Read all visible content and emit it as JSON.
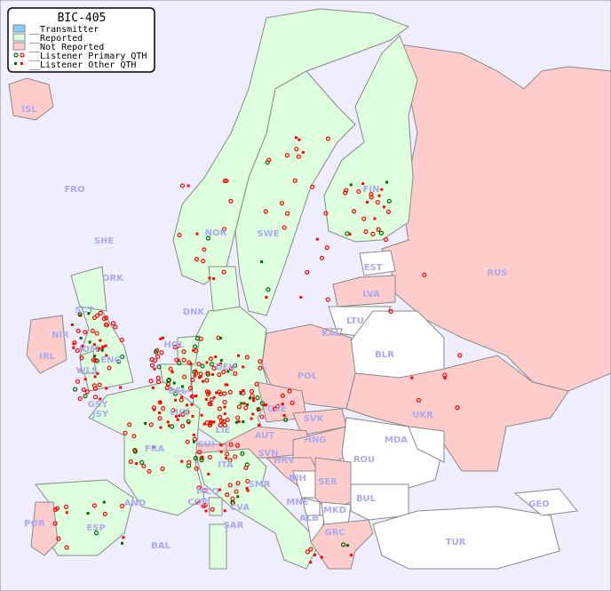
{
  "legend": {
    "title": "BIC-405",
    "items": [
      {
        "label": "__Transmitter",
        "color": "#88ccff"
      },
      {
        "label": "__Reported",
        "color": "#ddffdd"
      },
      {
        "label": "__Not Reported",
        "color": "#ffcccc"
      },
      {
        "label": "__Listener Primary QTH",
        "marker": "ring"
      },
      {
        "label": "__Listener Other QTH",
        "marker": "square"
      }
    ]
  },
  "colors": {
    "sea": "#eeeeff",
    "reported": "#ddffdd",
    "not_reported": "#ffcccc",
    "none": "#ffffff",
    "border": "#888888",
    "label": "#aaaaee",
    "marker_primary": "#ff0000",
    "marker_other": "#006600"
  },
  "countries": [
    {
      "code": "ISL",
      "status": "not_reported"
    },
    {
      "code": "FRO",
      "status": "none"
    },
    {
      "code": "SHE",
      "status": "none"
    },
    {
      "code": "ORK",
      "status": "reported"
    },
    {
      "code": "NOR",
      "status": "reported"
    },
    {
      "code": "SWE",
      "status": "reported"
    },
    {
      "code": "FIN",
      "status": "reported"
    },
    {
      "code": "RUS",
      "status": "not_reported"
    },
    {
      "code": "EST",
      "status": "none"
    },
    {
      "code": "LVA",
      "status": "not_reported"
    },
    {
      "code": "LTU",
      "status": "none"
    },
    {
      "code": "KAL",
      "status": "none"
    },
    {
      "code": "BLR",
      "status": "none"
    },
    {
      "code": "DNK",
      "status": "reported"
    },
    {
      "code": "SCT",
      "status": "reported"
    },
    {
      "code": "NIR",
      "status": "not_reported"
    },
    {
      "code": "IRL",
      "status": "not_reported"
    },
    {
      "code": "IOM",
      "status": "reported"
    },
    {
      "code": "ENG",
      "status": "reported"
    },
    {
      "code": "WLS",
      "status": "reported"
    },
    {
      "code": "HOL",
      "status": "reported"
    },
    {
      "code": "DEU",
      "status": "reported"
    },
    {
      "code": "POL",
      "status": "not_reported"
    },
    {
      "code": "BEL",
      "status": "reported"
    },
    {
      "code": "LUX",
      "status": "reported"
    },
    {
      "code": "CZE",
      "status": "not_reported"
    },
    {
      "code": "SVK",
      "status": "not_reported"
    },
    {
      "code": "UKR",
      "status": "not_reported"
    },
    {
      "code": "GSY",
      "status": "reported"
    },
    {
      "code": "JSY",
      "status": "reported"
    },
    {
      "code": "LIE",
      "status": "reported"
    },
    {
      "code": "AUT",
      "status": "not_reported"
    },
    {
      "code": "HNG",
      "status": "not_reported"
    },
    {
      "code": "MDA",
      "status": "none"
    },
    {
      "code": "FRA",
      "status": "reported"
    },
    {
      "code": "SUI",
      "status": "not_reported"
    },
    {
      "code": "SVN",
      "status": "reported"
    },
    {
      "code": "HRV",
      "status": "not_reported"
    },
    {
      "code": "ROU",
      "status": "none"
    },
    {
      "code": "ITA",
      "status": "reported"
    },
    {
      "code": "BIH",
      "status": "none"
    },
    {
      "code": "SER",
      "status": "not_reported"
    },
    {
      "code": "SMR",
      "status": "reported"
    },
    {
      "code": "MCO",
      "status": "reported"
    },
    {
      "code": "AND",
      "status": "reported"
    },
    {
      "code": "COR",
      "status": "reported"
    },
    {
      "code": "CVA",
      "status": "reported"
    },
    {
      "code": "MNE",
      "status": "none"
    },
    {
      "code": "BUL",
      "status": "none"
    },
    {
      "code": "GEO",
      "status": "none"
    },
    {
      "code": "POR",
      "status": "not_reported"
    },
    {
      "code": "ESP",
      "status": "reported"
    },
    {
      "code": "ALB",
      "status": "none"
    },
    {
      "code": "MKD",
      "status": "none"
    },
    {
      "code": "SAR",
      "status": "reported"
    },
    {
      "code": "BAL",
      "status": "reported"
    },
    {
      "code": "GRC",
      "status": "not_reported"
    },
    {
      "code": "TUR",
      "status": "none"
    }
  ]
}
